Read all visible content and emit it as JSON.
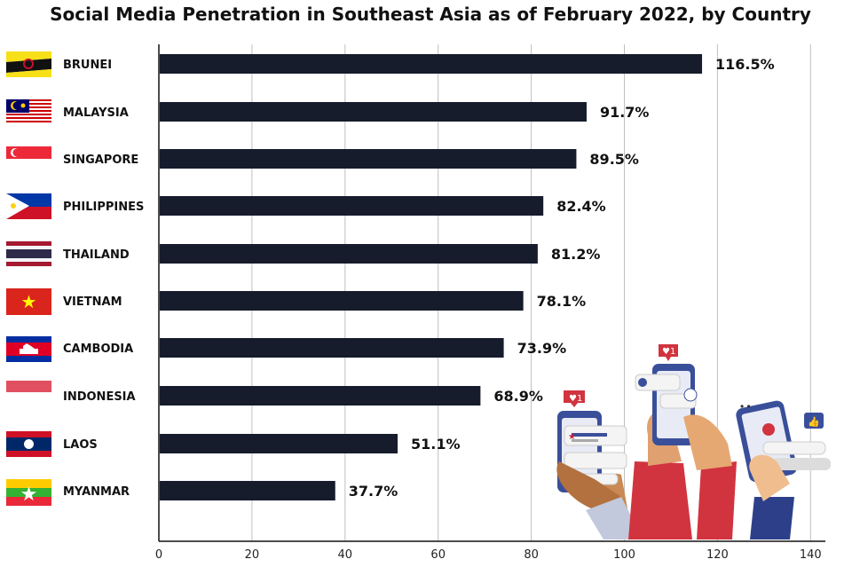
{
  "chart_data": {
    "type": "bar",
    "orientation": "horizontal",
    "title": "Social Media Penetration in Southeast Asia as of February 2022, by Country",
    "xlabel": "",
    "ylabel": "",
    "xlim": [
      0,
      140
    ],
    "xticks": [
      "0",
      "20",
      "40",
      "60",
      "80",
      "100",
      "120",
      "140"
    ],
    "grid": true,
    "categories": [
      "BRUNEI",
      "MALAYSIA",
      "SINGAPORE",
      "PHILIPPINES",
      "THAILAND",
      "VIETNAM",
      "CAMBODIA",
      "INDONESIA",
      "LAOS",
      "MYANMAR"
    ],
    "values": [
      116.5,
      91.7,
      89.5,
      82.4,
      81.2,
      78.1,
      73.9,
      68.9,
      51.1,
      37.7
    ],
    "value_labels": [
      "116.5%",
      "91.7%",
      "89.5%",
      "82.4%",
      "81.2%",
      "78.1%",
      "73.9%",
      "68.9%",
      "51.1%",
      "37.7%"
    ],
    "flags": [
      "brunei-flag-icon",
      "malaysia-flag-icon",
      "singapore-flag-icon",
      "philippines-flag-icon",
      "thailand-flag-icon",
      "vietnam-flag-icon",
      "cambodia-flag-icon",
      "indonesia-flag-icon",
      "laos-flag-icon",
      "myanmar-flag-icon"
    ],
    "bar_color": "#161c2c",
    "illustration": "hands-holding-phones-illustration"
  }
}
